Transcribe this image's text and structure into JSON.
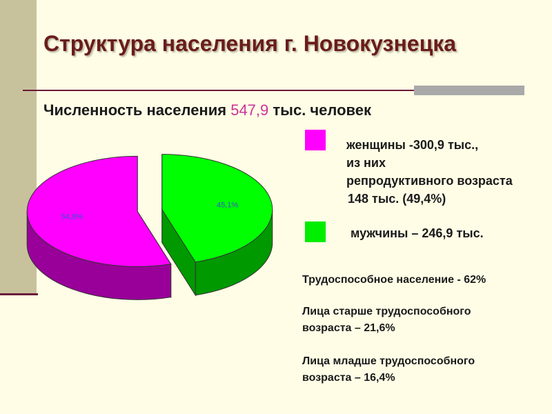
{
  "title": "Структура населения г. Новокузнецка",
  "subtitle": {
    "label": "Численность населения",
    "value": "547,9",
    "unit": "тыс. человек"
  },
  "chart_data": {
    "type": "pie",
    "title": "",
    "categories": [
      "женщины",
      "мужчины"
    ],
    "values": [
      54.9,
      45.1
    ],
    "data_labels": [
      "54,9%",
      "45,1%"
    ],
    "colors": [
      "#ff00ff",
      "#00ff00"
    ],
    "legend_position": "right"
  },
  "legend": {
    "women": {
      "lines": [
        "женщины -300,9 тыс.,",
        "из них",
        "репродуктивного возраста",
        "148 тыс. (49,4%)"
      ],
      "color": "#ff00ff"
    },
    "men": {
      "label": "мужчины – 246,9 тыс.",
      "color": "#00ee00"
    }
  },
  "stats": [
    [
      "Трудоспособное население - 62%"
    ],
    [
      "Лица старше трудоспособного",
      "возраста – 21,6%"
    ],
    [
      "Лица младше трудоспособного",
      "возраста – 16,4%"
    ]
  ]
}
